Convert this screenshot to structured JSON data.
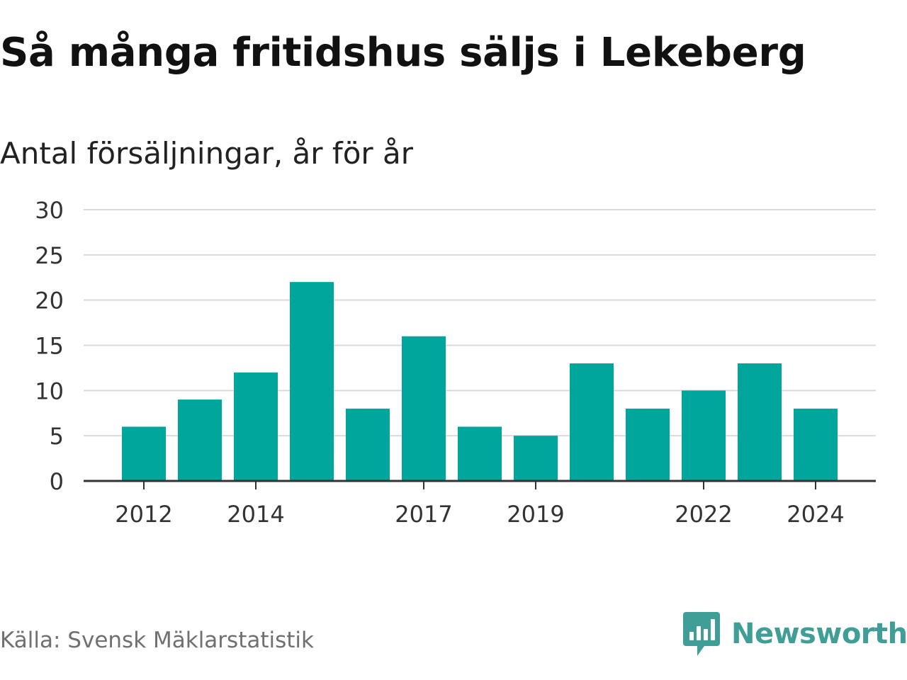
{
  "header": {
    "title": "Så många fritidshus säljs i Lekeberg",
    "subtitle": "Antal försäljningar, år för år"
  },
  "footer": {
    "source": "Källa: Svensk Mäklarstatistik",
    "brand": "Newsworthy",
    "brand_icon": "newsworthy-chart-bubble-icon"
  },
  "colors": {
    "bar": "#00a69c",
    "gridline": "#d9d9d9",
    "axis": "#333333",
    "brand": "#3f9e95"
  },
  "chart_data": {
    "type": "bar",
    "categories": [
      2012,
      2013,
      2014,
      2015,
      2016,
      2017,
      2018,
      2019,
      2020,
      2021,
      2022,
      2023,
      2024
    ],
    "values": [
      6,
      9,
      12,
      22,
      8,
      16,
      6,
      5,
      13,
      8,
      10,
      13,
      8
    ],
    "title": "Så många fritidshus säljs i Lekeberg",
    "subtitle": "Antal försäljningar, år för år",
    "xlabel": "",
    "ylabel": "",
    "ylim": [
      0,
      30
    ],
    "y_ticks": [
      0,
      5,
      10,
      15,
      20,
      25,
      30
    ],
    "x_tick_labels": [
      "2012",
      "2014",
      "2017",
      "2019",
      "2022",
      "2024"
    ],
    "grid": true,
    "legend": "none"
  }
}
